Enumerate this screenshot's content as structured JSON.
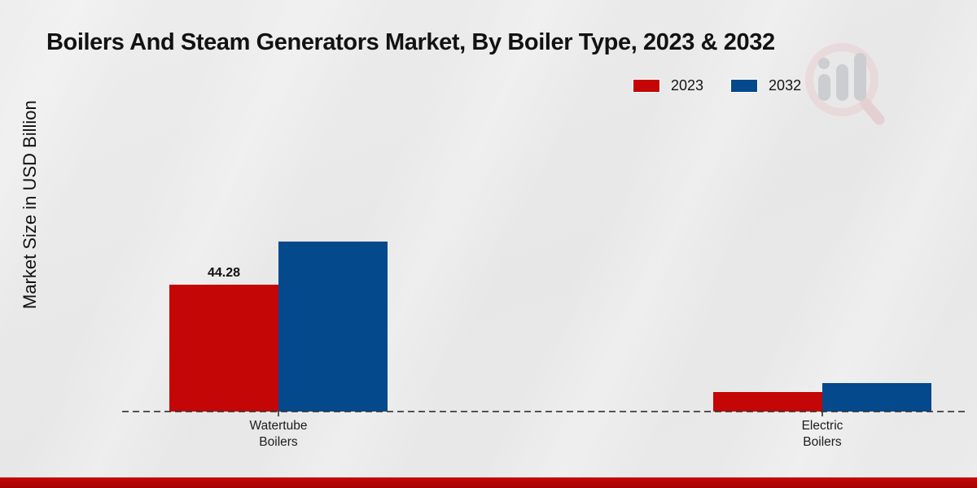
{
  "legend": {
    "items": [
      {
        "label": "2023",
        "color": "#c40606"
      },
      {
        "label": "2032",
        "color": "#04498c"
      }
    ]
  },
  "chart_data": {
    "type": "bar",
    "title": "Boilers And Steam Generators Market, By Boiler Type, 2023 & 2032",
    "xlabel": "",
    "ylabel": "Market Size in USD Billion",
    "categories": [
      "Watertube Boilers",
      "Electric Boilers"
    ],
    "series": [
      {
        "name": "2023",
        "color": "#c40606",
        "values": [
          44.28,
          6.8
        ]
      },
      {
        "name": "2032",
        "color": "#04498c",
        "values": [
          59.5,
          9.9
        ]
      }
    ],
    "ylim": [
      0,
      65
    ],
    "grid": false,
    "legend_position": "top-right",
    "baseline_style": "dashed",
    "data_labels": [
      {
        "series": 0,
        "category": 0,
        "text": "44.28"
      }
    ]
  },
  "footer": {
    "accent_color": "#b50707"
  },
  "icons": {
    "watermark": "magnifier-bar-chart-logo"
  }
}
